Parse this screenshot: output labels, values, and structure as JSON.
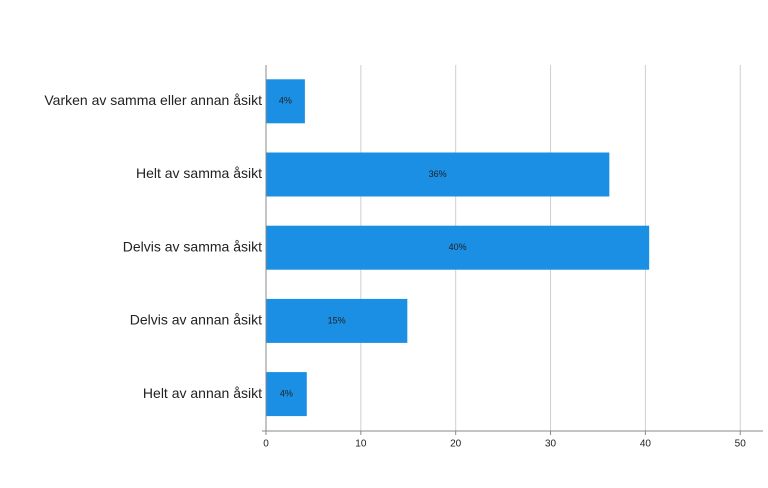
{
  "chart_data": {
    "type": "bar",
    "orientation": "horizontal",
    "categories": [
      "Varken av samma eller annan åsikt",
      "Helt av samma åsikt",
      "Delvis av samma åsikt",
      "Delvis av annan åsikt",
      "Helt av annan åsikt"
    ],
    "values": [
      4.1,
      36.2,
      40.4,
      14.9,
      4.3
    ],
    "value_labels": [
      "4%",
      "36%",
      "40%",
      "15%",
      "4%"
    ],
    "color": "#1a8fe3",
    "xlim": [
      0,
      52.4
    ],
    "xticks": [
      0,
      10,
      20,
      30,
      40,
      50
    ],
    "grid": true
  }
}
